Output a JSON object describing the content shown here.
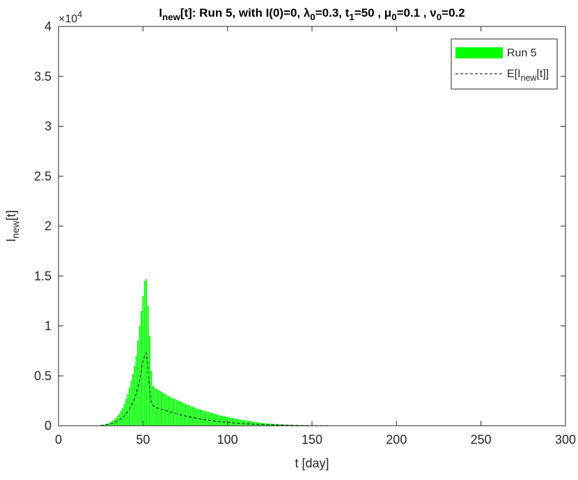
{
  "chart_data": {
    "type": "bar",
    "title": [
      "I",
      "new",
      "[t]:  Run 5, with I(0)=0, λ",
      "0",
      "=0.3,  t",
      "1",
      "=50 , μ",
      "0",
      "=0.1 , ν",
      "0",
      "=0.2"
    ],
    "xlabel": "t [day]",
    "ylabel": [
      "I",
      "new",
      "[t]"
    ],
    "y_multiplier": [
      "×10",
      "4"
    ],
    "xlim": [
      0,
      300
    ],
    "xticks": [
      0,
      50,
      100,
      150,
      200,
      250,
      300
    ],
    "ylim": [
      0,
      4
    ],
    "yticks": [
      0,
      0.5,
      1,
      1.5,
      2,
      2.5,
      3,
      3.5,
      4
    ],
    "grid": false,
    "legend": "northeast",
    "x": [
      25,
      26,
      27,
      28,
      29,
      30,
      31,
      32,
      33,
      34,
      35,
      36,
      37,
      38,
      39,
      40,
      41,
      42,
      43,
      44,
      45,
      46,
      47,
      48,
      49,
      50,
      51,
      52,
      53,
      54,
      55,
      56,
      57,
      58,
      59,
      60,
      61,
      62,
      63,
      64,
      65,
      66,
      67,
      68,
      69,
      70,
      71,
      72,
      73,
      74,
      75,
      76,
      77,
      78,
      79,
      80,
      81,
      82,
      83,
      84,
      85,
      86,
      87,
      88,
      89,
      90,
      91,
      92,
      93,
      94,
      95,
      96,
      97,
      98,
      99,
      100,
      101,
      102,
      103,
      104,
      105,
      106,
      107,
      108,
      109,
      110,
      111,
      112,
      113,
      114,
      115,
      116,
      117,
      118,
      119,
      120,
      121,
      122,
      123,
      124,
      125,
      126,
      127,
      128,
      129,
      130,
      131,
      132,
      133,
      134,
      135,
      136,
      137,
      138,
      139,
      140,
      141,
      142,
      143,
      144,
      145,
      146,
      147,
      148,
      149,
      150,
      151,
      152,
      153,
      154,
      155,
      156,
      157,
      158,
      159,
      160
    ],
    "series": [
      {
        "name": [
          "Run 5"
        ],
        "type": "bar",
        "color": "#00ff00",
        "values": [
          0.005,
          0.01,
          0.01,
          0.015,
          0.02,
          0.03,
          0.04,
          0.05,
          0.06,
          0.08,
          0.1,
          0.12,
          0.15,
          0.18,
          0.22,
          0.27,
          0.32,
          0.38,
          0.45,
          0.52,
          0.6,
          0.7,
          0.85,
          1.0,
          1.15,
          1.3,
          1.45,
          1.47,
          1.2,
          0.9,
          0.55,
          0.4,
          0.38,
          0.37,
          0.36,
          0.35,
          0.34,
          0.33,
          0.32,
          0.31,
          0.3,
          0.29,
          0.28,
          0.27,
          0.27,
          0.26,
          0.25,
          0.24,
          0.24,
          0.23,
          0.22,
          0.21,
          0.21,
          0.2,
          0.19,
          0.19,
          0.18,
          0.17,
          0.17,
          0.16,
          0.16,
          0.15,
          0.15,
          0.14,
          0.14,
          0.13,
          0.13,
          0.12,
          0.12,
          0.11,
          0.11,
          0.1,
          0.1,
          0.1,
          0.09,
          0.09,
          0.085,
          0.08,
          0.08,
          0.075,
          0.07,
          0.07,
          0.065,
          0.06,
          0.06,
          0.055,
          0.05,
          0.05,
          0.048,
          0.045,
          0.042,
          0.04,
          0.038,
          0.035,
          0.033,
          0.03,
          0.028,
          0.026,
          0.025,
          0.023,
          0.022,
          0.02,
          0.019,
          0.018,
          0.017,
          0.016,
          0.015,
          0.014,
          0.013,
          0.012,
          0.011,
          0.01,
          0.01,
          0.009,
          0.008,
          0.008,
          0.007,
          0.007,
          0.006,
          0.006,
          0.005,
          0.005,
          0.005,
          0.004,
          0.004,
          0.004,
          0.003,
          0.003,
          0.003,
          0.003,
          0.003,
          0.003,
          0.003,
          0.003,
          0.003,
          0.003
        ]
      },
      {
        "name": [
          "E[I",
          "new",
          "[t]]"
        ],
        "type": "line",
        "color": "#000000",
        "dashed": true,
        "values": [
          0.003,
          0.005,
          0.007,
          0.01,
          0.013,
          0.017,
          0.02,
          0.025,
          0.03,
          0.04,
          0.05,
          0.06,
          0.07,
          0.08,
          0.1,
          0.12,
          0.14,
          0.17,
          0.2,
          0.23,
          0.27,
          0.32,
          0.38,
          0.45,
          0.55,
          0.65,
          0.7,
          0.73,
          0.55,
          0.35,
          0.22,
          0.2,
          0.19,
          0.18,
          0.175,
          0.17,
          0.165,
          0.16,
          0.155,
          0.15,
          0.145,
          0.14,
          0.135,
          0.13,
          0.125,
          0.12,
          0.115,
          0.11,
          0.106,
          0.102,
          0.098,
          0.094,
          0.09,
          0.087,
          0.084,
          0.08,
          0.077,
          0.074,
          0.071,
          0.068,
          0.065,
          0.062,
          0.06,
          0.057,
          0.055,
          0.052,
          0.05,
          0.048,
          0.046,
          0.044,
          0.042,
          0.04,
          0.038,
          0.037,
          0.035,
          0.033,
          0.032,
          0.03,
          0.029,
          0.028,
          0.026,
          0.025,
          0.024,
          0.023,
          0.022,
          0.021,
          0.02,
          0.019,
          0.018,
          0.017,
          0.016,
          0.015,
          0.015,
          0.014,
          0.013,
          0.013,
          0.012,
          0.011,
          0.011,
          0.01,
          0.01,
          0.009,
          0.009,
          0.008,
          0.008,
          0.007,
          0.007,
          0.007,
          0.006,
          0.006,
          0.006,
          0.005,
          0.005,
          0.005,
          0.004,
          0.004,
          0.004,
          0.004,
          0.003,
          0.003,
          0.003,
          0.003,
          0.003,
          0.002,
          0.002,
          0.002,
          0.002,
          0.002,
          0.002,
          0.002,
          0.002,
          0.002,
          0.002,
          0.002,
          0.002,
          0.002
        ]
      }
    ]
  }
}
